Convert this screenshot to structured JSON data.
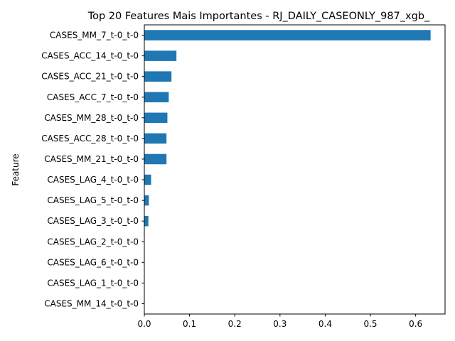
{
  "chart_data": {
    "type": "bar",
    "orientation": "horizontal",
    "title": "Top 20 Features Mais Importantes - RJ_DAILY_CASEONLY_987_xgb_",
    "xlabel": "",
    "ylabel": "Feature",
    "xlim": [
      0,
      0.665
    ],
    "xticks": [
      "0.0",
      "0.1",
      "0.2",
      "0.3",
      "0.4",
      "0.5",
      "0.6"
    ],
    "grid": false,
    "bar_color": "#1f77b4",
    "categories": [
      "CASES_MM_7_t-0_t-0",
      "CASES_ACC_14_t-0_t-0",
      "CASES_ACC_21_t-0_t-0",
      "CASES_ACC_7_t-0_t-0",
      "CASES_MM_28_t-0_t-0",
      "CASES_ACC_28_t-0_t-0",
      "CASES_MM_21_t-0_t-0",
      "CASES_LAG_4_t-0_t-0",
      "CASES_LAG_5_t-0_t-0",
      "CASES_LAG_3_t-0_t-0",
      "CASES_LAG_2_t-0_t-0",
      "CASES_LAG_6_t-0_t-0",
      "CASES_LAG_1_t-0_t-0",
      "CASES_MM_14_t-0_t-0"
    ],
    "values": [
      0.633,
      0.071,
      0.06,
      0.054,
      0.051,
      0.049,
      0.049,
      0.015,
      0.01,
      0.009,
      0.0,
      0.0,
      0.0,
      0.0
    ]
  }
}
